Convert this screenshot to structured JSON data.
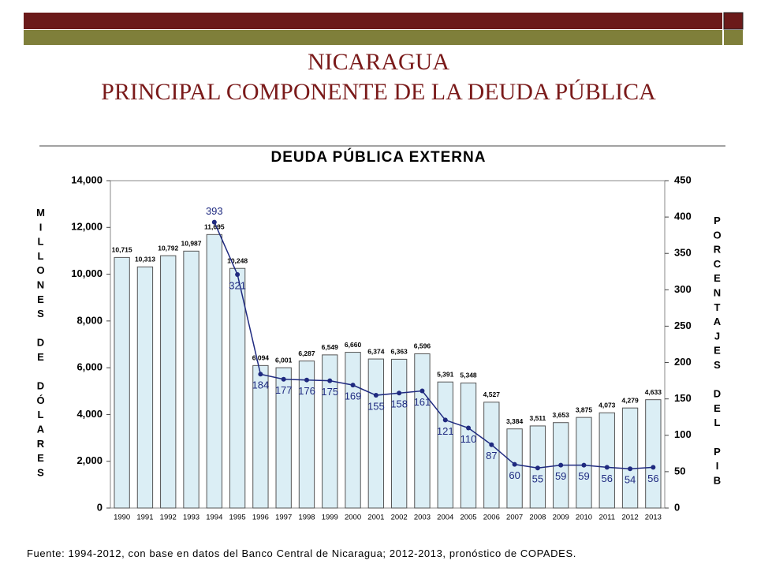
{
  "slide": {
    "title_lines": [
      "NICARAGUA",
      "PRINCIPAL COMPONENTE DE LA DEUDA PÚBLICA"
    ],
    "source": "Fuente: 1994-2012, con base en datos del Banco Central de Nicaragua; 2012-2013, pronóstico de COPADES."
  },
  "chart_data": {
    "type": "bar",
    "title": "DEUDA PÚBLICA EXTERNA",
    "ylabel": "MILLONES DE DÓLARES",
    "y2label": "PORCENTAJES DEL PIB",
    "categories": [
      "1990",
      "1991",
      "1992",
      "1993",
      "1994",
      "1995",
      "1996",
      "1997",
      "1998",
      "1999",
      "2000",
      "2001",
      "2002",
      "2003",
      "2004",
      "2005",
      "2006",
      "2007",
      "2008",
      "2009",
      "2010",
      "2011",
      "2012",
      "2013"
    ],
    "series": [
      {
        "type": "bar",
        "color": "#dbeef5",
        "values": [
          10715,
          10313,
          10792,
          10987,
          11695,
          10248,
          6094,
          6001,
          6287,
          6549,
          6660,
          6374,
          6363,
          6596,
          5391,
          5348,
          4527,
          3384,
          3511,
          3653,
          3875,
          4073,
          4279,
          4633
        ],
        "value_labels": [
          "10,715",
          "10,313",
          "10,792",
          "10,987",
          "11,695",
          "10,248",
          "6,094",
          "6,001",
          "6,287",
          "6,549",
          "6,660",
          "6,374",
          "6,363",
          "6,596",
          "5,391",
          "5,348",
          "4,527",
          "3,384",
          "3,511",
          "3,653",
          "3,875",
          "4,073",
          "4,279",
          "4,633"
        ]
      },
      {
        "type": "line",
        "axis": "y2",
        "color": "#1f2a80",
        "values": [
          null,
          null,
          null,
          null,
          393,
          321,
          184,
          177,
          176,
          175,
          169,
          155,
          158,
          161,
          121,
          110,
          87,
          60,
          55,
          59,
          59,
          56,
          54,
          56
        ]
      }
    ],
    "ylim": [
      0,
      14000
    ],
    "yticks": [
      {
        "value": 0,
        "label": "0"
      },
      {
        "value": 2000,
        "label": "2,000"
      },
      {
        "value": 4000,
        "label": "4,000"
      },
      {
        "value": 6000,
        "label": "6,000"
      },
      {
        "value": 8000,
        "label": "8,000"
      },
      {
        "value": 10000,
        "label": "10,000"
      },
      {
        "value": 12000,
        "label": "12,000"
      },
      {
        "value": 14000,
        "label": "14,000"
      }
    ],
    "y2lim": [
      0,
      450
    ],
    "y2ticks": [
      0,
      50,
      100,
      150,
      200,
      250,
      300,
      350,
      400,
      450
    ]
  }
}
